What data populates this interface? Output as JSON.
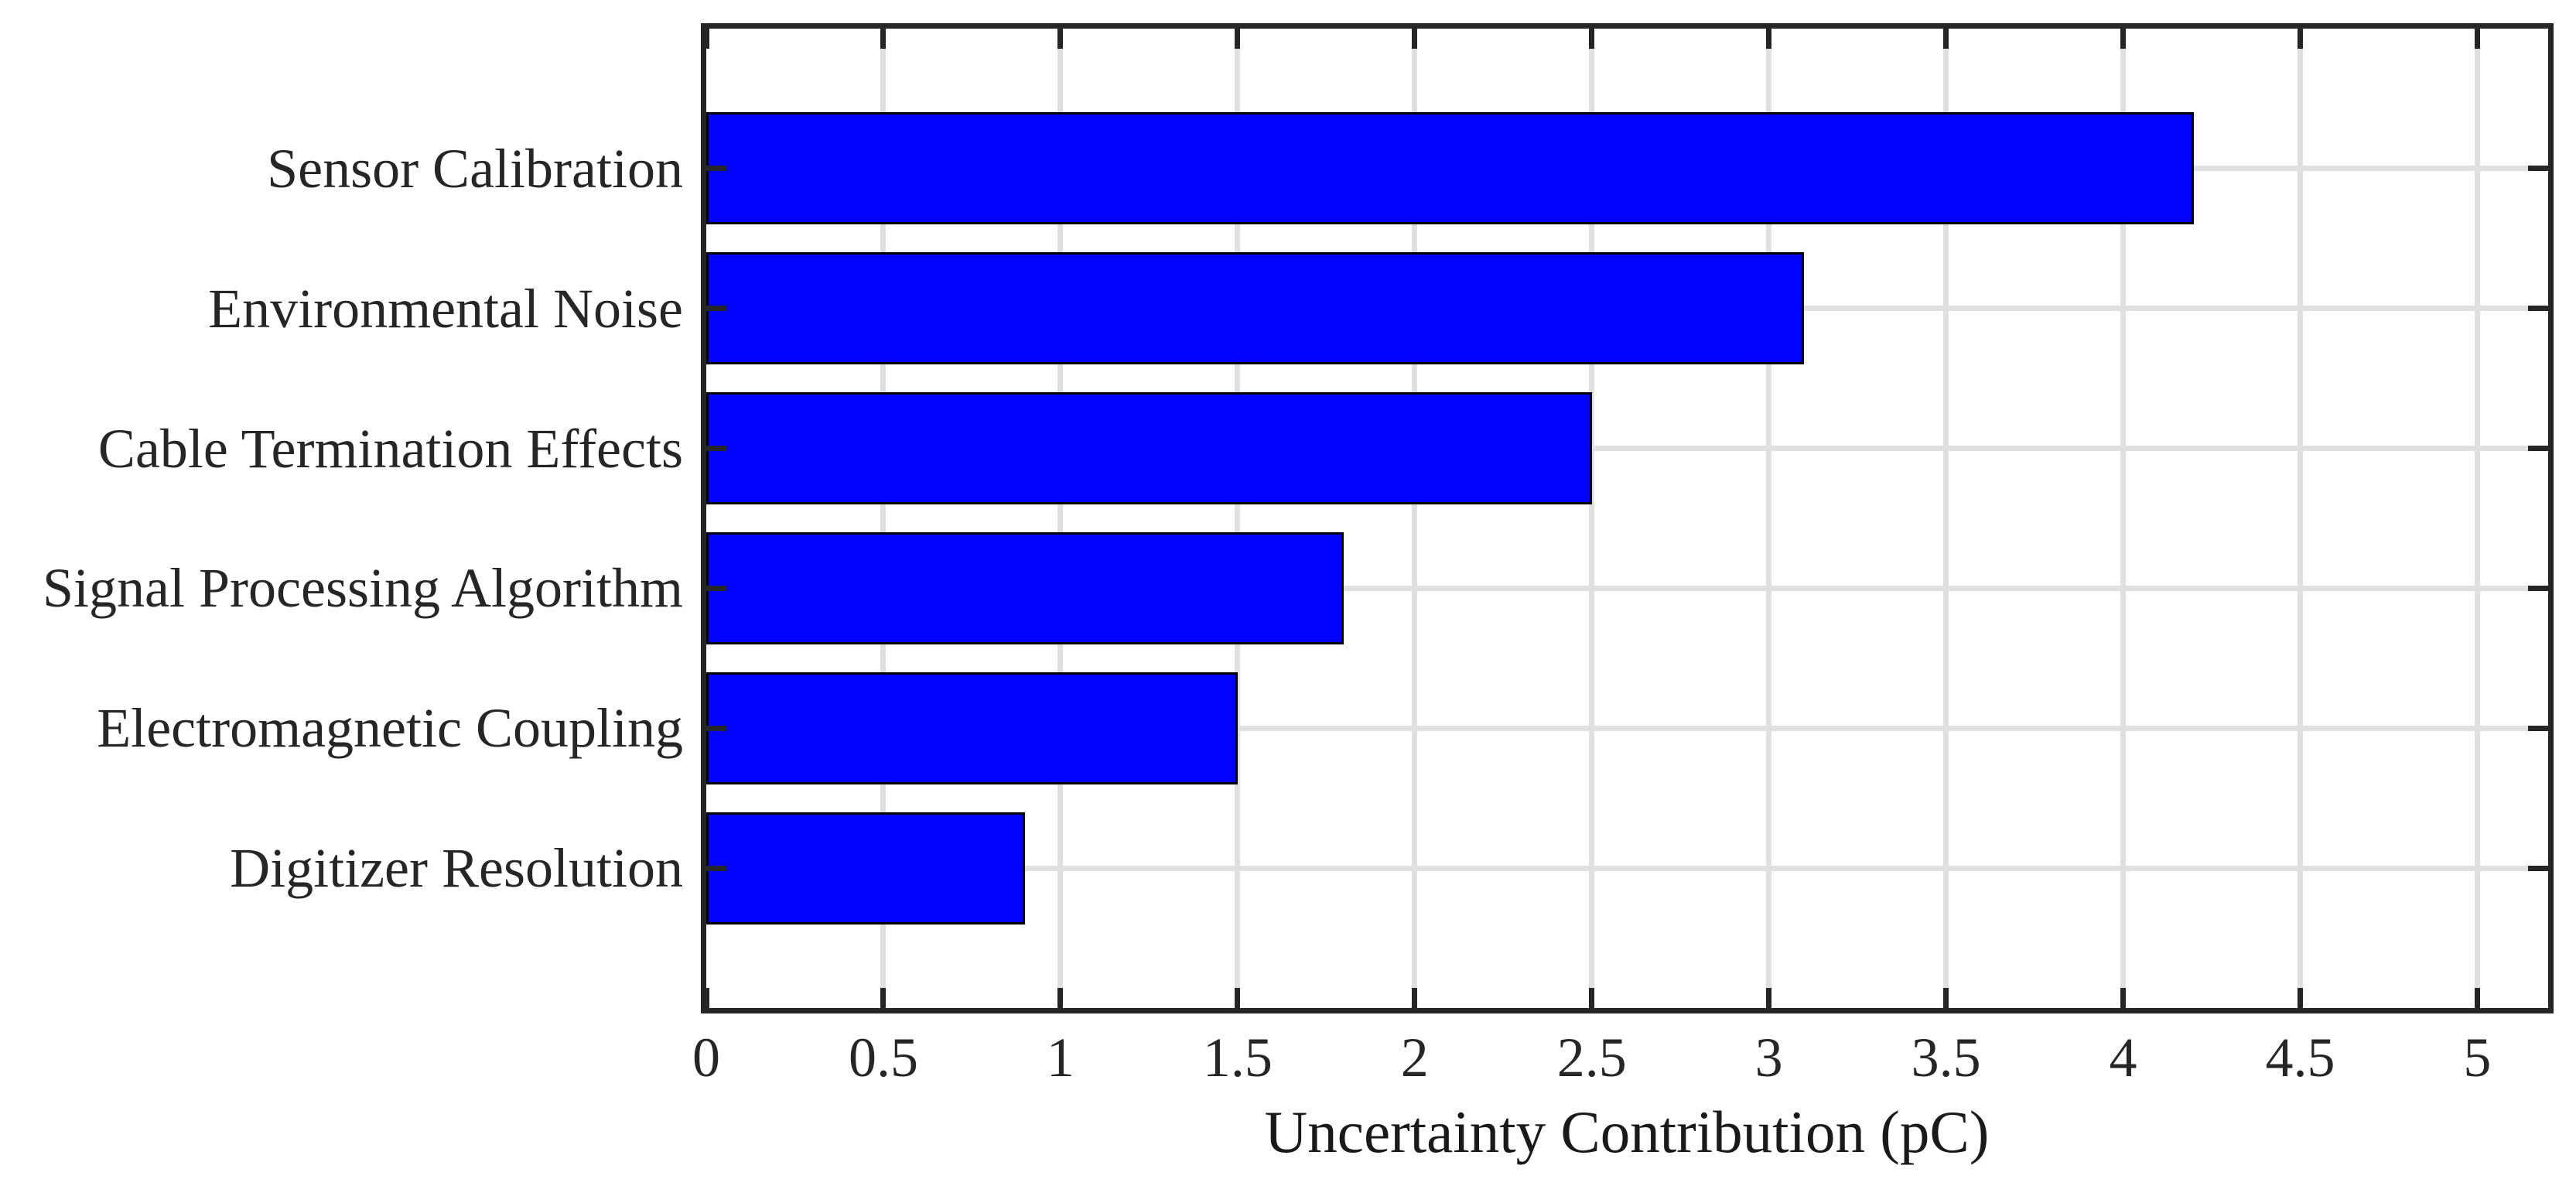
{
  "chart_data": {
    "type": "bar",
    "orientation": "horizontal",
    "title": "",
    "xlabel": "Uncertainty Contribution (pC)",
    "ylabel": "",
    "categories": [
      "Sensor Calibration",
      "Environmental Noise",
      "Cable Termination Effects",
      "Signal Processing Algorithm",
      "Electromagnetic Coupling",
      "Digitizer Resolution"
    ],
    "values": [
      4.2,
      3.1,
      2.5,
      1.8,
      1.5,
      0.9
    ],
    "xlim": [
      0,
      5.2
    ],
    "xticks": [
      0,
      0.5,
      1,
      1.5,
      2,
      2.5,
      3,
      3.5,
      4,
      4.5,
      5
    ],
    "xtick_labels": [
      "0",
      "0.5",
      "1",
      "1.5",
      "2",
      "2.5",
      "3",
      "3.5",
      "4",
      "4.5",
      "5"
    ],
    "grid": true,
    "legend": null,
    "bar_width_fraction": 0.8,
    "colors": {
      "bar_fill": "#0000FF",
      "bar_edge": "#000000",
      "axis": "#262626",
      "grid": "#E0E0E0",
      "text": "#262626",
      "background": "#FFFFFF"
    }
  }
}
